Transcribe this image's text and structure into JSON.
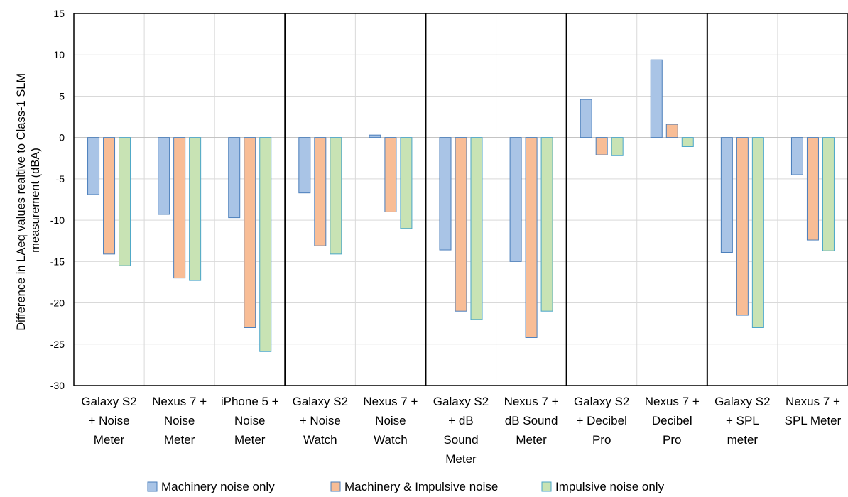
{
  "chart_data": {
    "type": "bar",
    "ylabel_lines": [
      "Difference in LAeq values  realtive to Class-1 SLM",
      "measurement (dBA)"
    ],
    "ylim": [
      -30,
      15
    ],
    "yticks": [
      15,
      10,
      5,
      0,
      -5,
      -10,
      -15,
      -20,
      -25,
      -30
    ],
    "grid": true,
    "legend_position": "bottom",
    "categories": [
      [
        "Galaxy S2",
        "+ Noise",
        "Meter"
      ],
      [
        "Nexus 7 +",
        "Noise",
        "Meter"
      ],
      [
        "iPhone 5 +",
        "Noise",
        "Meter"
      ],
      [
        "Galaxy S2",
        "+ Noise",
        "Watch"
      ],
      [
        "Nexus 7 +",
        "Noise",
        "Watch"
      ],
      [
        "Galaxy S2",
        "+ dB",
        "Sound",
        "Meter"
      ],
      [
        "Nexus 7 +",
        "dB Sound",
        "Meter"
      ],
      [
        "Galaxy S2",
        "+ Decibel",
        "Pro"
      ],
      [
        "Nexus 7 +",
        "Decibel",
        "Pro"
      ],
      [
        "Galaxy S2",
        "+ SPL",
        "meter"
      ],
      [
        "Nexus 7 +",
        "SPL Meter"
      ]
    ],
    "group_separators_after": [
      2,
      4,
      6,
      8
    ],
    "series": [
      {
        "name": "Machinery noise only",
        "color": "#a9c4e6",
        "stroke": "#4a7ebb",
        "values": [
          -6.9,
          -9.3,
          -9.7,
          -6.7,
          0.3,
          -13.6,
          -15.0,
          4.6,
          9.4,
          -13.9,
          -4.5
        ]
      },
      {
        "name": "Machinery & Impulsive noise",
        "color": "#f8bd96",
        "stroke": "#4a7ebb",
        "values": [
          -14.1,
          -17.0,
          -23.0,
          -13.1,
          -9.0,
          -21.0,
          -24.2,
          -2.1,
          1.6,
          -21.5,
          -12.4
        ]
      },
      {
        "name": "Impulsive noise only",
        "color": "#c8e3b4",
        "stroke": "#4aa6c8",
        "values": [
          -15.5,
          -17.3,
          -25.9,
          -14.1,
          -11.0,
          -22.0,
          -21.0,
          -2.2,
          -1.1,
          -23.0,
          -13.7
        ]
      }
    ]
  }
}
